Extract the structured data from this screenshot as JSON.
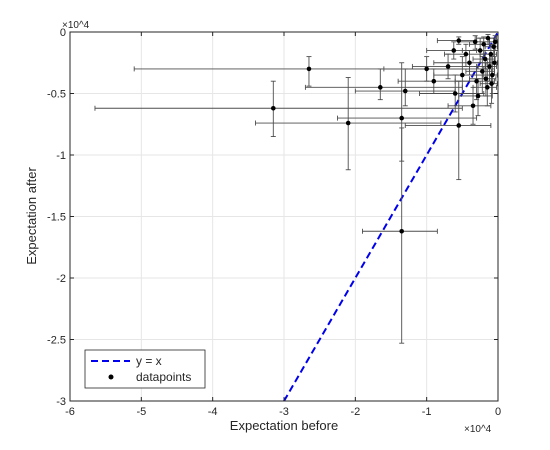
{
  "chart_data": {
    "type": "scatter",
    "xlabel": "Expectation before",
    "ylabel": "Expectation after",
    "x_exponent_label": "×10^4",
    "y_exponent_label": "×10^4",
    "xlim": [
      -6,
      0
    ],
    "ylim": [
      -3,
      0
    ],
    "x_ticks": [
      -6,
      -5,
      -4,
      -3,
      -2,
      -1,
      0
    ],
    "x_tick_labels": [
      "-6",
      "-5",
      "-4",
      "-3",
      "-2",
      "-1",
      "0"
    ],
    "y_ticks": [
      0,
      -0.5,
      -1,
      -1.5,
      -2,
      -2.5,
      -3
    ],
    "y_tick_labels": [
      "0",
      "-0.5",
      "-1",
      "-1.5",
      "-2",
      "-2.5",
      "-3"
    ],
    "grid": true,
    "legend_position": "bottom-left",
    "legend": [
      {
        "label": "y = x",
        "style": "dashed-line",
        "color": "#0000ee"
      },
      {
        "label": "datapoints",
        "style": "marker",
        "color": "#000000"
      }
    ],
    "reference_line": {
      "label": "y = x",
      "from": [
        -3.0,
        -3.0
      ],
      "to": [
        0,
        0
      ],
      "color": "#0000ee"
    },
    "series": [
      {
        "name": "datapoints",
        "color": "#000000",
        "points": [
          {
            "x": -2.65,
            "y": -0.3,
            "xerr_lo": -5.1,
            "xerr_hi": -0.2,
            "yerr_lo": -0.44,
            "yerr_hi": -0.2
          },
          {
            "x": -3.15,
            "y": -0.62,
            "xerr_lo": -5.65,
            "xerr_hi": -0.5,
            "yerr_lo": -0.85,
            "yerr_hi": -0.4
          },
          {
            "x": -2.1,
            "y": -0.74,
            "xerr_lo": -3.4,
            "xerr_hi": -0.8,
            "yerr_lo": -1.12,
            "yerr_hi": -0.37
          },
          {
            "x": -1.65,
            "y": -0.45,
            "xerr_lo": -2.7,
            "xerr_hi": -0.5,
            "yerr_lo": -0.55,
            "yerr_hi": -0.3
          },
          {
            "x": -1.35,
            "y": -0.7,
            "xerr_lo": -2.25,
            "xerr_hi": -0.3,
            "yerr_lo": -1.05,
            "yerr_hi": -0.25
          },
          {
            "x": -1.3,
            "y": -0.48,
            "xerr_lo": -2.0,
            "xerr_hi": -0.6,
            "yerr_lo": -0.6,
            "yerr_hi": -0.3
          },
          {
            "x": -1.35,
            "y": -1.62,
            "xerr_lo": -1.9,
            "xerr_hi": -0.85,
            "yerr_lo": -2.53,
            "yerr_hi": -0.78
          },
          {
            "x": -1.0,
            "y": -0.3,
            "xerr_lo": -1.6,
            "xerr_hi": -0.4,
            "yerr_lo": -0.4,
            "yerr_hi": -0.2
          },
          {
            "x": -0.9,
            "y": -0.4,
            "xerr_lo": -1.4,
            "xerr_hi": -0.3,
            "yerr_lo": -0.5,
            "yerr_hi": -0.3
          },
          {
            "x": -0.55,
            "y": -0.76,
            "xerr_lo": -1.3,
            "xerr_hi": -0.1,
            "yerr_lo": -1.2,
            "yerr_hi": -0.4
          },
          {
            "x": -0.6,
            "y": -0.5,
            "xerr_lo": -1.1,
            "xerr_hi": -0.2,
            "yerr_lo": -0.65,
            "yerr_hi": -0.35
          },
          {
            "x": -0.55,
            "y": -0.07,
            "xerr_lo": -0.85,
            "xerr_hi": -0.3,
            "yerr_lo": -0.1,
            "yerr_hi": -0.04
          },
          {
            "x": -0.4,
            "y": -0.25,
            "xerr_lo": -0.9,
            "xerr_hi": -0.1,
            "yerr_lo": -0.35,
            "yerr_hi": -0.15
          },
          {
            "x": -0.5,
            "y": -0.35,
            "xerr_lo": -0.9,
            "xerr_hi": -0.2,
            "yerr_lo": -0.5,
            "yerr_hi": -0.2
          },
          {
            "x": -0.35,
            "y": -0.6,
            "xerr_lo": -0.7,
            "xerr_hi": -0.1,
            "yerr_lo": -0.75,
            "yerr_hi": -0.45
          },
          {
            "x": -0.3,
            "y": -0.4,
            "xerr_lo": -0.6,
            "xerr_hi": -0.05,
            "yerr_lo": -0.55,
            "yerr_hi": -0.28
          },
          {
            "x": -0.25,
            "y": -0.15,
            "xerr_lo": -0.5,
            "xerr_hi": -0.05,
            "yerr_lo": -0.25,
            "yerr_hi": -0.05
          },
          {
            "x": -0.22,
            "y": -0.32,
            "xerr_lo": -0.45,
            "xerr_hi": -0.05,
            "yerr_lo": -0.5,
            "yerr_hi": -0.2
          },
          {
            "x": -0.2,
            "y": -0.1,
            "xerr_lo": -0.4,
            "xerr_hi": -0.05,
            "yerr_lo": -0.18,
            "yerr_hi": -0.04
          },
          {
            "x": -0.18,
            "y": -0.22,
            "xerr_lo": -0.35,
            "xerr_hi": -0.04,
            "yerr_lo": -0.3,
            "yerr_hi": -0.15
          },
          {
            "x": -0.15,
            "y": -0.45,
            "xerr_lo": -0.35,
            "xerr_hi": -0.02,
            "yerr_lo": -0.6,
            "yerr_hi": -0.3
          },
          {
            "x": -0.14,
            "y": -0.05,
            "xerr_lo": -0.3,
            "xerr_hi": -0.02,
            "yerr_lo": -0.1,
            "yerr_hi": -0.02
          },
          {
            "x": -0.12,
            "y": -0.28,
            "xerr_lo": -0.28,
            "xerr_hi": -0.02,
            "yerr_lo": -0.4,
            "yerr_hi": -0.18
          },
          {
            "x": -0.1,
            "y": -0.18,
            "xerr_lo": -0.25,
            "xerr_hi": -0.02,
            "yerr_lo": -0.28,
            "yerr_hi": -0.1
          },
          {
            "x": -0.08,
            "y": -0.35,
            "xerr_lo": -0.22,
            "xerr_hi": -0.01,
            "yerr_lo": -0.5,
            "yerr_hi": -0.2
          },
          {
            "x": -0.06,
            "y": -0.12,
            "xerr_lo": -0.18,
            "xerr_hi": -0.01,
            "yerr_lo": -0.2,
            "yerr_hi": -0.05
          },
          {
            "x": -0.05,
            "y": -0.25,
            "xerr_lo": -0.15,
            "xerr_hi": -0.01,
            "yerr_lo": -0.35,
            "yerr_hi": -0.15
          },
          {
            "x": -0.04,
            "y": -0.08,
            "xerr_lo": -0.12,
            "xerr_hi": -0.01,
            "yerr_lo": -0.15,
            "yerr_hi": -0.03
          },
          {
            "x": -0.28,
            "y": -0.52,
            "xerr_lo": -0.55,
            "xerr_hi": -0.08,
            "yerr_lo": -0.68,
            "yerr_hi": -0.38
          },
          {
            "x": -0.45,
            "y": -0.18,
            "xerr_lo": -0.75,
            "xerr_hi": -0.2,
            "yerr_lo": -0.28,
            "yerr_hi": -0.1
          },
          {
            "x": -0.32,
            "y": -0.08,
            "xerr_lo": -0.55,
            "xerr_hi": -0.12,
            "yerr_lo": -0.14,
            "yerr_hi": -0.03
          },
          {
            "x": -0.7,
            "y": -0.28,
            "xerr_lo": -1.2,
            "xerr_hi": -0.3,
            "yerr_lo": -0.38,
            "yerr_hi": -0.18
          },
          {
            "x": -0.62,
            "y": -0.15,
            "xerr_lo": -1.0,
            "xerr_hi": -0.3,
            "yerr_lo": -0.22,
            "yerr_hi": -0.08
          },
          {
            "x": -0.17,
            "y": -0.38,
            "xerr_lo": -0.4,
            "xerr_hi": -0.03,
            "yerr_lo": -0.52,
            "yerr_hi": -0.25
          },
          {
            "x": -0.09,
            "y": -0.42,
            "xerr_lo": -0.25,
            "xerr_hi": -0.01,
            "yerr_lo": -0.58,
            "yerr_hi": -0.3
          }
        ]
      }
    ]
  }
}
